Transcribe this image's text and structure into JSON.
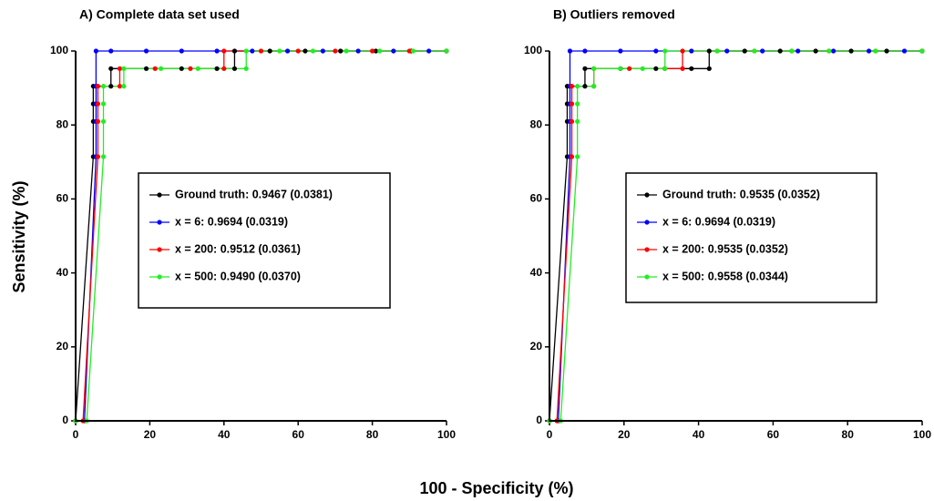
{
  "xlabel": "100 - Specificity (%)",
  "ylabel": "Sensitivity (%)",
  "chart_data": [
    {
      "type": "line",
      "title": "A) Complete data set used",
      "xlim": [
        0,
        100
      ],
      "ylim": [
        0,
        100
      ],
      "xticks": [
        0,
        20,
        40,
        60,
        80,
        100
      ],
      "yticks": [
        0,
        20,
        40,
        60,
        80,
        100
      ],
      "grid": false,
      "legend": "center",
      "series": [
        {
          "name": "Ground truth: 0.9467 (0.0381)",
          "color": "#000000",
          "x": [
            0,
            4.76,
            4.76,
            4.76,
            4.76,
            9.52,
            9.52,
            19.05,
            28.57,
            38.1,
            42.86,
            42.86,
            52.38,
            61.9,
            71.43,
            80.95,
            90.48,
            100
          ],
          "values": [
            0,
            71.43,
            80.95,
            85.71,
            90.48,
            90.48,
            95.24,
            95.24,
            95.24,
            95.24,
            95.24,
            100,
            100,
            100,
            100,
            100,
            100,
            100
          ]
        },
        {
          "name": "x = 6: 0.9694 (0.0319)",
          "color": "#0000ff",
          "x": [
            0,
            2.38,
            5.5,
            5.5,
            5.5,
            5.5,
            5.5,
            9.52,
            19.05,
            28.57,
            38.1,
            47.62,
            57.14,
            66.67,
            76.19,
            85.71,
            95.24,
            100
          ],
          "values": [
            0,
            0,
            71.43,
            80.95,
            85.71,
            90.48,
            100,
            100,
            100,
            100,
            100,
            100,
            100,
            100,
            100,
            100,
            100,
            100
          ]
        },
        {
          "name": "x = 200: 0.9512 (0.0361)",
          "color": "#ff0000",
          "x": [
            0,
            2,
            6,
            6,
            6,
            6,
            11.9,
            11.9,
            21.43,
            30.95,
            40,
            40,
            50,
            60,
            70,
            80,
            90,
            100
          ],
          "values": [
            0,
            0,
            71.43,
            80.95,
            85.71,
            90.48,
            90.48,
            95.24,
            95.24,
            95.24,
            95.24,
            100,
            100,
            100,
            100,
            100,
            100,
            100
          ]
        },
        {
          "name": "x = 500: 0.9490 (0.0370)",
          "color": "#22ee22",
          "x": [
            0,
            3,
            7.5,
            7.5,
            7.5,
            7.5,
            13,
            13,
            23,
            33,
            46,
            46,
            55,
            64,
            73,
            82,
            91,
            100
          ],
          "values": [
            0,
            0,
            71.43,
            80.95,
            85.71,
            90.48,
            90.48,
            95.24,
            95.24,
            95.24,
            95.24,
            100,
            100,
            100,
            100,
            100,
            100,
            100
          ]
        }
      ]
    },
    {
      "type": "line",
      "title": "B) Outliers removed",
      "xlim": [
        0,
        100
      ],
      "ylim": [
        0,
        100
      ],
      "xticks": [
        0,
        20,
        40,
        60,
        80,
        100
      ],
      "yticks": [
        0,
        20,
        40,
        60,
        80,
        100
      ],
      "grid": false,
      "legend": "center",
      "series": [
        {
          "name": "Ground truth: 0.9535 (0.0352)",
          "color": "#000000",
          "x": [
            0,
            4.76,
            4.76,
            4.76,
            4.76,
            9.52,
            9.52,
            19.05,
            28.57,
            38.1,
            42.86,
            42.86,
            52.38,
            61.9,
            71.43,
            80.95,
            90.48,
            100
          ],
          "values": [
            0,
            71.43,
            80.95,
            85.71,
            90.48,
            90.48,
            95.24,
            95.24,
            95.24,
            95.24,
            95.24,
            100,
            100,
            100,
            100,
            100,
            100,
            100
          ]
        },
        {
          "name": "x = 6: 0.9694 (0.0319)",
          "color": "#0000ff",
          "x": [
            0,
            2.38,
            5.5,
            5.5,
            5.5,
            5.5,
            5.5,
            9.52,
            19.05,
            28.57,
            38.1,
            47.62,
            57.14,
            66.67,
            76.19,
            85.71,
            95.24,
            100
          ],
          "values": [
            0,
            0,
            71.43,
            80.95,
            85.71,
            90.48,
            100,
            100,
            100,
            100,
            100,
            100,
            100,
            100,
            100,
            100,
            100,
            100
          ]
        },
        {
          "name": "x = 200: 0.9535 (0.0352)",
          "color": "#ff0000",
          "x": [
            0,
            2,
            6,
            6,
            6,
            6,
            11.9,
            11.9,
            21.43,
            30.95,
            35.71,
            35.71,
            45,
            55,
            65,
            75,
            87.5,
            100
          ],
          "values": [
            0,
            0,
            71.43,
            80.95,
            85.71,
            90.48,
            90.48,
            95.24,
            95.24,
            95.24,
            95.24,
            100,
            100,
            100,
            100,
            100,
            100,
            100
          ]
        },
        {
          "name": "x = 500: 0.9558 (0.0344)",
          "color": "#22ee22",
          "x": [
            0,
            3,
            7.5,
            7.5,
            7.5,
            7.5,
            11.9,
            11.9,
            19,
            25,
            31,
            31,
            45,
            55,
            65,
            75,
            87.5,
            100
          ],
          "values": [
            0,
            0,
            71.43,
            80.95,
            85.71,
            90.48,
            90.48,
            95.24,
            95.24,
            95.24,
            95.24,
            100,
            100,
            100,
            100,
            100,
            100,
            100
          ]
        }
      ]
    }
  ]
}
